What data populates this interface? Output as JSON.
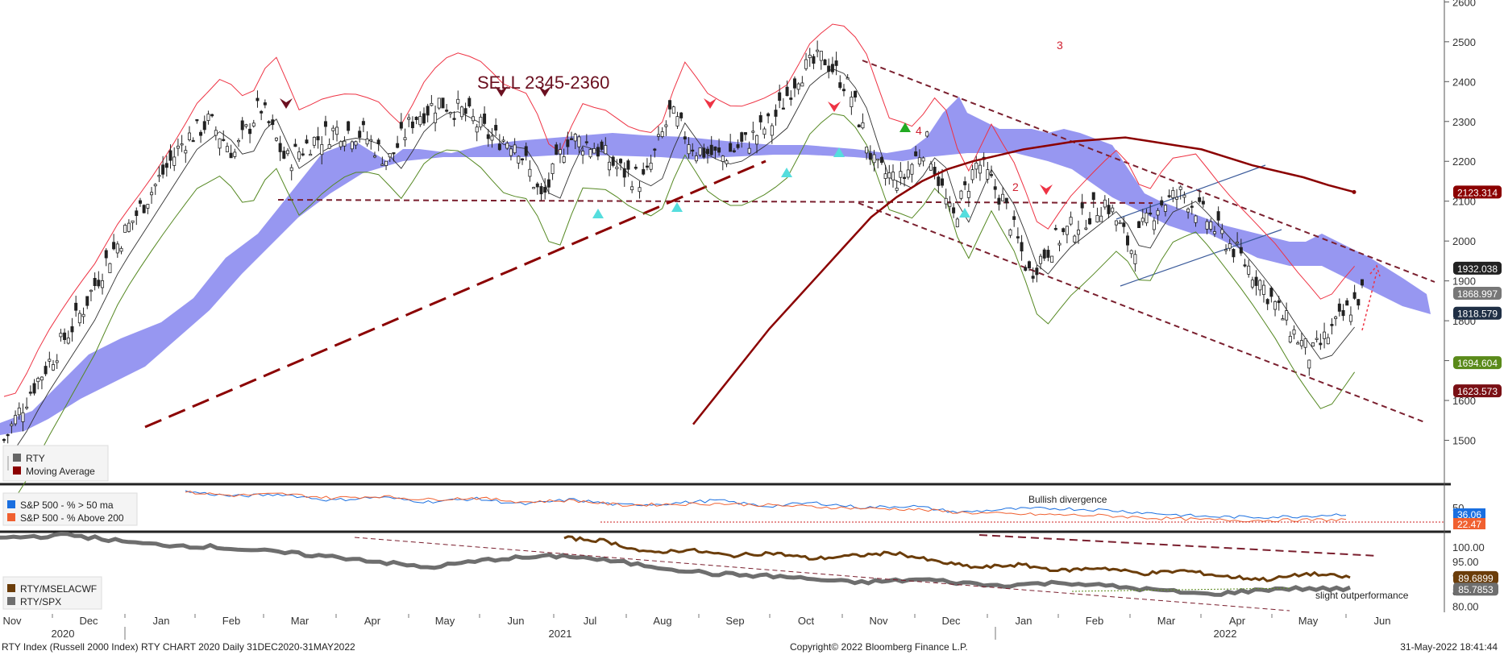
{
  "footer": {
    "left": "RTY Index (Russell 2000 Index) RTY CHART 2020  Daily 31DEC2020-31MAY2022",
    "center": "Copyright© 2022 Bloomberg Finance L.P.",
    "right": "31-May-2022 18:41:44"
  },
  "annotations": {
    "sell": "SELL 2345-2360",
    "wave3": "3",
    "wave4": "4",
    "wave2": "2",
    "bullish_divergence": "Bullish divergence",
    "slight_outperformance": "slight outperformance"
  },
  "legends": {
    "main": [
      "RTY",
      "Moving Average"
    ],
    "breadth": [
      "S&P 500 - % > 50 ma",
      "S&P 500 - % Above 200"
    ],
    "relative": [
      "RTY/MSELACWF",
      "RTY/SPX"
    ]
  },
  "colors": {
    "price": "#222222",
    "ma200": "#8b0000",
    "cloud": "#8c8cf0",
    "upper_band": "#ee3344",
    "lower_band": "#558822",
    "trend": "#7a1f2e",
    "blue_line": "#1a6fe0",
    "orange_line": "#f06030",
    "brown_line": "#6b3d0a",
    "grey_line": "#6e6e6e"
  },
  "chart_data": [
    {
      "type": "line",
      "name": "main-price",
      "ylim": [
        1400,
        2600
      ],
      "y_ticks": [
        1500,
        1600,
        1700,
        1800,
        1900,
        2000,
        2100,
        2200,
        2300,
        2400,
        2500,
        2600
      ],
      "x_labels": [
        "Nov",
        "Dec",
        "Jan",
        "Feb",
        "Mar",
        "Apr",
        "May",
        "Jun",
        "Jul",
        "Aug",
        "Sep",
        "Oct",
        "Nov",
        "Dec",
        "Jan",
        "Feb",
        "Mar",
        "Apr",
        "May",
        "Jun"
      ],
      "year_labels": [
        "2020",
        "2021",
        "2022"
      ],
      "price_labels": [
        {
          "value": "2123.314",
          "y": 2123,
          "color": "#8b0000"
        },
        {
          "value": "1932.038",
          "y": 1932,
          "color": "#222222"
        },
        {
          "value": "1868.997",
          "y": 1869,
          "color": "#777777"
        },
        {
          "value": "1818.579",
          "y": 1819,
          "color": "#1f2f45"
        },
        {
          "value": "1694.604",
          "y": 1695,
          "color": "#5a8a1a"
        },
        {
          "value": "1623.573",
          "y": 1624,
          "color": "#7a1015"
        }
      ],
      "series": [
        {
          "name": "RTY",
          "values": [
            1500,
            1620,
            1720,
            1820,
            1950,
            2050,
            2150,
            2250,
            2300,
            2220,
            2340,
            2200,
            2250,
            2280,
            2270,
            2200,
            2310,
            2350,
            2320,
            2260,
            2250,
            2100,
            2260,
            2240,
            2180,
            2150,
            2320,
            2230,
            2210,
            2250,
            2300,
            2420,
            2460,
            2380,
            2180,
            2150,
            2250,
            2050,
            2200,
            2100,
            1920,
            2000,
            2050,
            2100,
            1980,
            2090,
            2120,
            2050,
            1980,
            1900,
            1800,
            1710,
            1790,
            1870
          ]
        },
        {
          "name": "Moving Average",
          "values": [
            1540,
            1620,
            1700,
            1780,
            1850,
            1920,
            1990,
            2060,
            2110,
            2150,
            2180,
            2200,
            2215,
            2230,
            2240,
            2250,
            2255,
            2260,
            2250,
            2240,
            2230,
            2210,
            2190,
            2175,
            2160,
            2140,
            2123
          ]
        }
      ]
    },
    {
      "type": "line",
      "name": "breadth",
      "y_ticks": [
        50
      ],
      "price_labels": [
        {
          "value": "36.06",
          "color": "#1a6fe0"
        },
        {
          "value": "22.47",
          "color": "#f06030"
        }
      ],
      "series": [
        {
          "name": "S&P 500 - % > 50 ma",
          "values": [
            92,
            80,
            85,
            70,
            78,
            66,
            74,
            60,
            72,
            58,
            62,
            70,
            55,
            64,
            52,
            56,
            40,
            48,
            50,
            46,
            38,
            30,
            28,
            30,
            36
          ]
        },
        {
          "name": "S&P 500 - % Above 200",
          "values": [
            90,
            82,
            86,
            76,
            80,
            72,
            76,
            66,
            70,
            58,
            60,
            62,
            58,
            54,
            50,
            48,
            40,
            36,
            34,
            32,
            26,
            22,
            20,
            21,
            22
          ]
        }
      ]
    },
    {
      "type": "line",
      "name": "relative",
      "y_ticks": [
        80.0,
        85.0,
        90.0,
        95.0,
        100.0
      ],
      "price_labels": [
        {
          "value": "89.6899",
          "y": 89.69,
          "color": "#6b3d0a"
        },
        {
          "value": "85.7853",
          "y": 85.79,
          "color": "#6e6e6e"
        }
      ],
      "series": [
        {
          "name": "RTY/MSELACWF",
          "values": [
            103,
            102,
            98,
            99,
            97,
            98,
            96,
            97,
            98,
            95,
            93,
            94,
            92,
            93,
            91,
            92,
            90,
            89,
            91,
            89.7
          ]
        },
        {
          "name": "RTY/SPX",
          "values": [
            103,
            104,
            101,
            100,
            98,
            96,
            93,
            96,
            97,
            94,
            91,
            90,
            88,
            89,
            87,
            88,
            86,
            84,
            86,
            85.8
          ]
        }
      ]
    }
  ]
}
